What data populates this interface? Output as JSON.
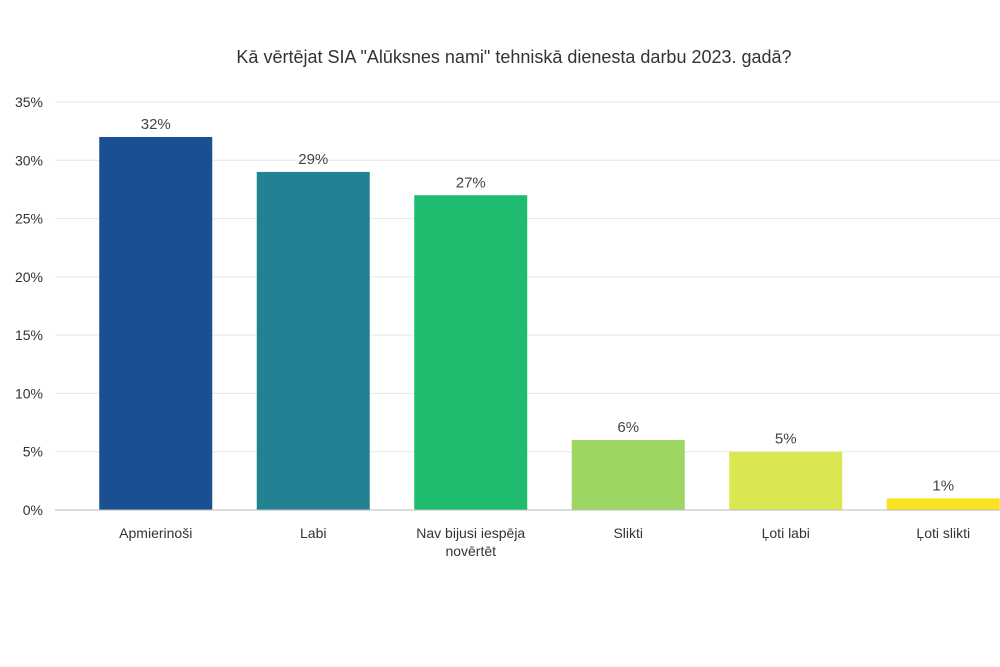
{
  "chart_data": {
    "type": "bar",
    "title": "Kā vērtējat SIA \"Alūksnes nami\" tehniskā dienesta darbu 2023. gadā?",
    "categories": [
      [
        "Apmierinoši"
      ],
      [
        "Labi"
      ],
      [
        "Nav bijusi iespēja",
        "novērtēt"
      ],
      [
        "Slikti"
      ],
      [
        "Ļoti labi"
      ],
      [
        "Ļoti slikti"
      ]
    ],
    "values": [
      32,
      29,
      27,
      6,
      5,
      1
    ],
    "data_labels": [
      "32%",
      "29%",
      "27%",
      "6%",
      "5%",
      "1%"
    ],
    "colors": [
      "#1a4f91",
      "#228294",
      "#1fbb6f",
      "#9dd663",
      "#dbe751",
      "#f9e31f"
    ],
    "ylim": [
      0,
      35
    ],
    "yticks": [
      0,
      5,
      10,
      15,
      20,
      25,
      30,
      35
    ],
    "ytick_labels": [
      "0%",
      "5%",
      "10%",
      "15%",
      "20%",
      "25%",
      "30%",
      "35%"
    ],
    "grid": true,
    "legend": "none"
  }
}
